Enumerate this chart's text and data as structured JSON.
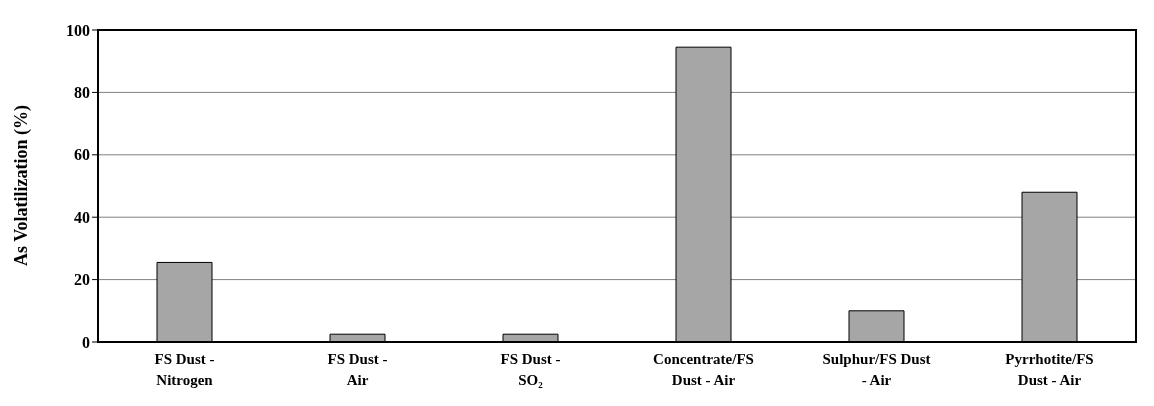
{
  "chart_data": {
    "type": "bar",
    "ylabel": "As Volatilization (%)",
    "categories": [
      "FS Dust -\nNitrogen",
      "FS Dust -\nAir",
      "FS Dust -\nSO₂",
      "Concentrate/FS\nDust - Air",
      "Sulphur/FS Dust\n- Air",
      "Pyrrhotite/FS\nDust - Air"
    ],
    "values": [
      25.5,
      2.5,
      2.5,
      94.5,
      10,
      48
    ],
    "color": "#a6a6a6",
    "ylim": [
      0,
      100
    ],
    "yticks": [
      0,
      20,
      40,
      60,
      80,
      100
    ],
    "grid": "y"
  }
}
